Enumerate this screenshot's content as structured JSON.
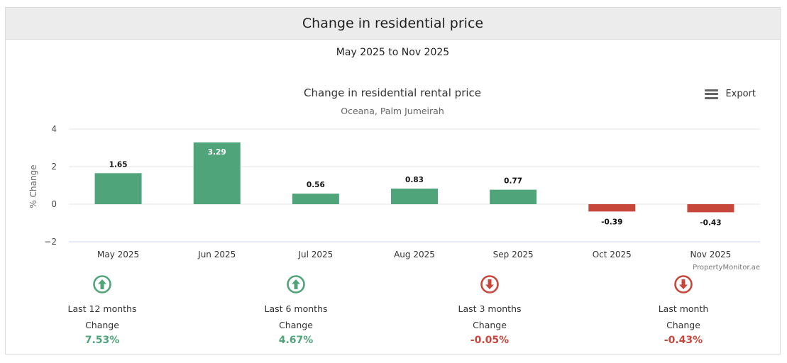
{
  "header": {
    "title": "Change in residential price"
  },
  "range_label": "May 2025 to Nov 2025",
  "export": {
    "label": "Export",
    "icon": "hamburger-menu-icon"
  },
  "colors": {
    "positive": "#4fa47a",
    "negative": "#c8473b",
    "grid": "#e6e6e6",
    "axis": "#ccd6eb"
  },
  "credit": "PropertyMonitor.ae",
  "chart_data": {
    "type": "bar",
    "title": "Change in residential rental price",
    "subtitle": "Oceana, Palm Jumeirah",
    "xlabel": "",
    "ylabel": "% Change",
    "ylim": [
      -2,
      4
    ],
    "yticks": [
      "4",
      "2",
      "0",
      "−2"
    ],
    "yticks_values": [
      4,
      2,
      0,
      -2
    ],
    "categories": [
      "May 2025",
      "Jun 2025",
      "Jul 2025",
      "Aug 2025",
      "Sep 2025",
      "Oct 2025",
      "Nov 2025"
    ],
    "values": [
      1.65,
      3.29,
      0.56,
      0.83,
      0.77,
      -0.39,
      -0.43
    ],
    "value_labels": [
      "1.65",
      "3.29",
      "0.56",
      "0.83",
      "0.77",
      "-0.39",
      "-0.43"
    ]
  },
  "stats": [
    {
      "period": "Last 12 months",
      "change_label": "Change",
      "value": "7.53%",
      "direction": "up",
      "icon": "arrow-up-circle-icon"
    },
    {
      "period": "Last 6 months",
      "change_label": "Change",
      "value": "4.67%",
      "direction": "up",
      "icon": "arrow-up-circle-icon"
    },
    {
      "period": "Last 3 months",
      "change_label": "Change",
      "value": "-0.05%",
      "direction": "down",
      "icon": "arrow-down-circle-icon"
    },
    {
      "period": "Last month",
      "change_label": "Change",
      "value": "-0.43%",
      "direction": "down",
      "icon": "arrow-down-circle-icon"
    }
  ]
}
